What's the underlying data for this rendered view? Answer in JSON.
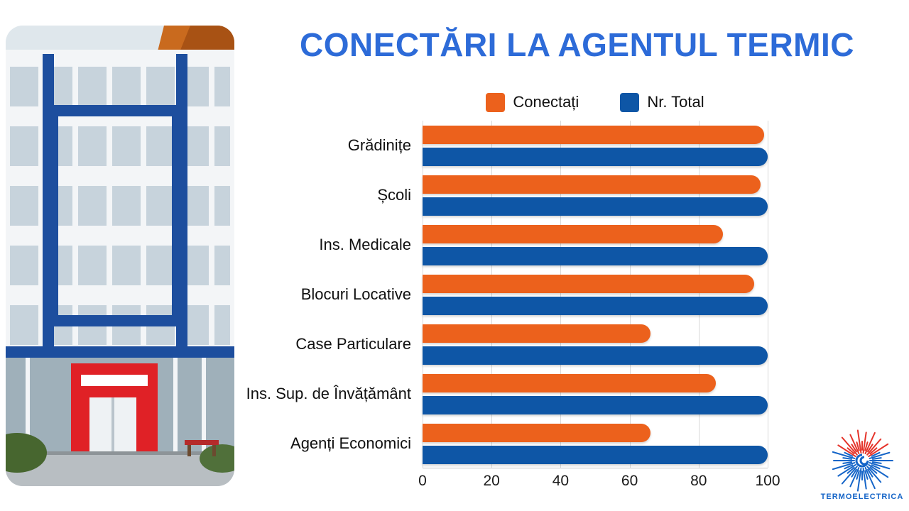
{
  "slide": {
    "title": "CONECTĂRI LA AGENTUL TERMIC",
    "title_color": "#2D6BD8"
  },
  "legend": [
    {
      "label": "Conectați",
      "color": "#EC611C"
    },
    {
      "label": "Nr. Total",
      "color": "#0E56A6"
    }
  ],
  "chart_data": {
    "type": "bar",
    "orientation": "horizontal",
    "title": "CONECTĂRI LA AGENTUL TERMIC",
    "categories": [
      "Grădinițe",
      "Școli",
      "Ins. Medicale",
      "Blocuri Locative",
      "Case Particulare",
      "Ins. Sup. de Învățământ",
      "Agenți Economici"
    ],
    "series": [
      {
        "name": "Conectați",
        "color": "#EC611C",
        "values": [
          99,
          98,
          87,
          96,
          66,
          85,
          66
        ]
      },
      {
        "name": "Nr. Total",
        "color": "#0E56A6",
        "values": [
          100,
          100,
          100,
          100,
          100,
          100,
          100
        ]
      }
    ],
    "xlim": [
      0,
      100
    ],
    "x_ticks": [
      0,
      20,
      40,
      60,
      80,
      100
    ],
    "grid": "vertical",
    "gridline_color": "#D9D9D9",
    "legend_position": "top"
  },
  "logo": {
    "text": "TERMOELECTRICA",
    "blue": "#1565C8",
    "red": "#E5332A"
  }
}
